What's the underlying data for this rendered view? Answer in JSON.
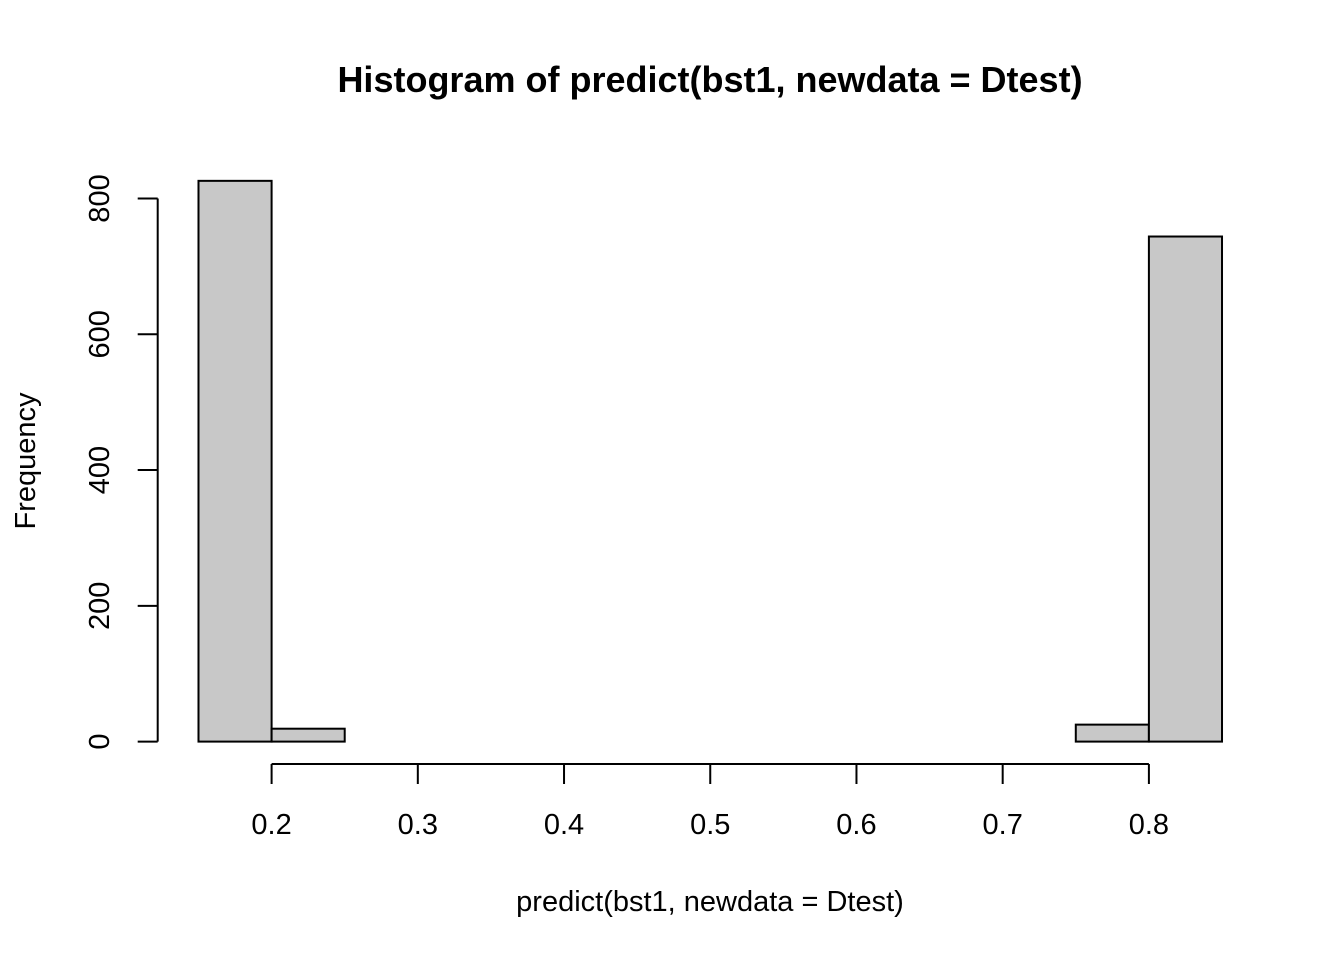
{
  "chart_data": {
    "type": "bar",
    "subtype": "histogram",
    "title": "Histogram of predict(bst1, newdata = Dtest)",
    "xlabel": "predict(bst1, newdata = Dtest)",
    "ylabel": "Frequency",
    "bins": [
      {
        "from": 0.15,
        "to": 0.2,
        "count": 826
      },
      {
        "from": 0.2,
        "to": 0.25,
        "count": 19
      },
      {
        "from": 0.25,
        "to": 0.3,
        "count": 0
      },
      {
        "from": 0.3,
        "to": 0.35,
        "count": 0
      },
      {
        "from": 0.35,
        "to": 0.4,
        "count": 0
      },
      {
        "from": 0.4,
        "to": 0.45,
        "count": 0
      },
      {
        "from": 0.45,
        "to": 0.5,
        "count": 0
      },
      {
        "from": 0.5,
        "to": 0.55,
        "count": 0
      },
      {
        "from": 0.55,
        "to": 0.6,
        "count": 0
      },
      {
        "from": 0.6,
        "to": 0.65,
        "count": 0
      },
      {
        "from": 0.65,
        "to": 0.7,
        "count": 0
      },
      {
        "from": 0.7,
        "to": 0.75,
        "count": 0
      },
      {
        "from": 0.75,
        "to": 0.8,
        "count": 25
      },
      {
        "from": 0.8,
        "to": 0.85,
        "count": 744
      }
    ],
    "x_ticks": [
      "0.2",
      "0.3",
      "0.4",
      "0.5",
      "0.6",
      "0.7",
      "0.8"
    ],
    "y_ticks": [
      "0",
      "200",
      "400",
      "600",
      "800"
    ],
    "xlim": [
      0.2,
      0.8
    ],
    "ylim": [
      0,
      800
    ],
    "bar_color": "#c8c8c8",
    "grid": false,
    "legend": "none"
  }
}
